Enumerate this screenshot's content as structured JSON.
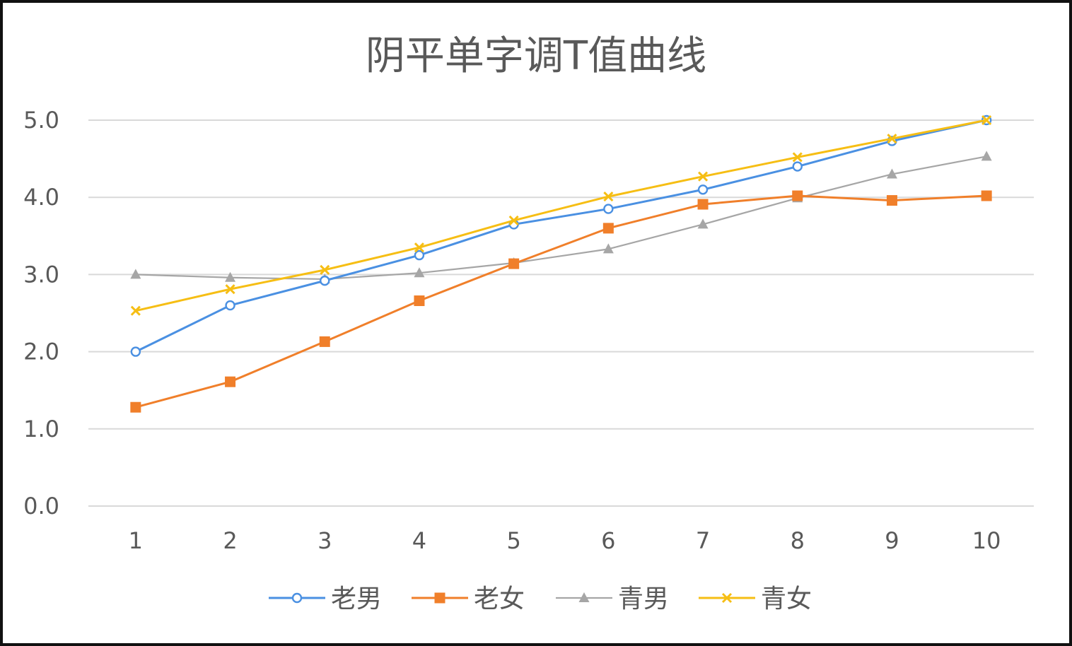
{
  "chart_data": {
    "type": "line",
    "title": "阴平单字调T值曲线",
    "xlabel": "",
    "ylabel": "",
    "categories": [
      "1",
      "2",
      "3",
      "4",
      "5",
      "6",
      "7",
      "8",
      "9",
      "10"
    ],
    "yticks": [
      "0.0",
      "1.0",
      "2.0",
      "3.0",
      "4.0",
      "5.0"
    ],
    "ylim": [
      0,
      5
    ],
    "grid": true,
    "legend_position": "bottom",
    "series": [
      {
        "name": "老男",
        "color": "#4A90E2",
        "marker": "circle",
        "values": [
          2.0,
          2.6,
          2.92,
          3.25,
          3.65,
          3.85,
          4.1,
          4.4,
          4.73,
          5.0
        ]
      },
      {
        "name": "老女",
        "color": "#F07F2A",
        "marker": "square",
        "values": [
          1.28,
          1.61,
          2.13,
          2.66,
          3.14,
          3.6,
          3.91,
          4.02,
          3.96,
          4.02
        ]
      },
      {
        "name": "青男",
        "color": "#A6A6A6",
        "marker": "triangle",
        "values": [
          3.0,
          2.96,
          2.94,
          3.02,
          3.15,
          3.33,
          3.65,
          3.99,
          4.3,
          4.53
        ]
      },
      {
        "name": "青女",
        "color": "#F6BE14",
        "marker": "x",
        "values": [
          2.53,
          2.81,
          3.06,
          3.35,
          3.7,
          4.01,
          4.27,
          4.52,
          4.76,
          5.0
        ]
      }
    ]
  }
}
